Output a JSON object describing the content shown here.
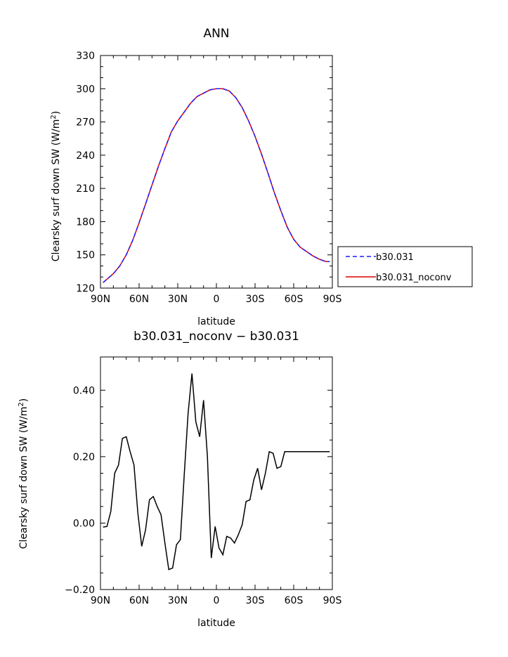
{
  "chart_data": [
    {
      "type": "line",
      "title": "ANN",
      "xlabel": "latitude",
      "ylabel": "Clearsky surf down SW (W/m",
      "ylabel_superscript": "2",
      "ylabel_suffix": ")",
      "xlim": [
        90,
        -90
      ],
      "ylim": [
        120,
        330
      ],
      "xticks": [
        90,
        60,
        30,
        0,
        -30,
        -60,
        -90
      ],
      "xtick_labels": [
        "90N",
        "60N",
        "30N",
        "0",
        "30S",
        "60S",
        "90S"
      ],
      "yticks": [
        120,
        150,
        180,
        210,
        240,
        270,
        300,
        330
      ],
      "ytick_labels": [
        "120",
        "150",
        "180",
        "210",
        "240",
        "270",
        "300",
        "330"
      ],
      "legend": {
        "placement": "right"
      },
      "series": [
        {
          "name": "b30.031",
          "color": "#1a1aff",
          "dash": "dashed",
          "x": [
            88,
            85,
            80,
            75,
            70,
            65,
            60,
            55,
            50,
            45,
            40,
            35,
            30,
            25,
            20,
            15,
            10,
            5,
            0,
            -5,
            -10,
            -15,
            -20,
            -25,
            -30,
            -35,
            -40,
            -45,
            -50,
            -55,
            -60,
            -65,
            -70,
            -75,
            -80,
            -85,
            -88
          ],
          "y": [
            125,
            128,
            133,
            140,
            150,
            163,
            179,
            196,
            213,
            230,
            246,
            261,
            271,
            279,
            287,
            293,
            296,
            299,
            300,
            300,
            298,
            292,
            283,
            271,
            257,
            241,
            224,
            206,
            190,
            175,
            164,
            157,
            153,
            149,
            146,
            144,
            144
          ]
        },
        {
          "name": "b30.031_noconv",
          "color": "#e00000",
          "dash": "solid",
          "x": [
            88,
            85,
            80,
            75,
            70,
            65,
            60,
            55,
            50,
            45,
            40,
            35,
            30,
            25,
            20,
            15,
            10,
            5,
            0,
            -5,
            -10,
            -15,
            -20,
            -25,
            -30,
            -35,
            -40,
            -45,
            -50,
            -55,
            -60,
            -65,
            -70,
            -75,
            -80,
            -85,
            -88
          ],
          "y": [
            125,
            128,
            133,
            140,
            150,
            163,
            179,
            196,
            213,
            230,
            246,
            261,
            271,
            279,
            287,
            293,
            296,
            299,
            300,
            300,
            298,
            292,
            283,
            271,
            257,
            241,
            224,
            206,
            190,
            175,
            164,
            157,
            153,
            149,
            146,
            144,
            144
          ]
        }
      ]
    },
    {
      "type": "line",
      "title": "b30.031_noconv − b30.031",
      "xlabel": "latitude",
      "ylabel": "Clearsky surf down SW (W/m",
      "ylabel_superscript": "2",
      "ylabel_suffix": ")",
      "xlim": [
        90,
        -90
      ],
      "ylim": [
        -0.2,
        0.5
      ],
      "xticks": [
        90,
        60,
        30,
        0,
        -30,
        -60,
        -90
      ],
      "xtick_labels": [
        "90N",
        "60N",
        "30N",
        "0",
        "30S",
        "60S",
        "90S"
      ],
      "yticks": [
        -0.2,
        0.0,
        0.2,
        0.4
      ],
      "ytick_labels": [
        "−0.20",
        "0.00",
        "0.20",
        "0.40"
      ],
      "series": [
        {
          "color": "#000000",
          "x": [
            88,
            85,
            82,
            79,
            76,
            73,
            70,
            67,
            64,
            61,
            58,
            55,
            52,
            49,
            46,
            43,
            40,
            37,
            34,
            31,
            28,
            25,
            22,
            19,
            16,
            13,
            10,
            7,
            4,
            1,
            -2,
            -5,
            -8,
            -11,
            -14,
            -17,
            -20,
            -23,
            -26,
            -29,
            -32,
            -35,
            -38,
            -41,
            -44,
            -47,
            -50,
            -53,
            -56,
            -59,
            -62,
            -65,
            -68,
            -71,
            -74,
            -77,
            -80,
            -83,
            -86,
            -88
          ],
          "y": [
            -0.012,
            -0.01,
            0.035,
            0.15,
            0.175,
            0.255,
            0.26,
            0.215,
            0.175,
            0.03,
            -0.07,
            -0.02,
            0.07,
            0.08,
            0.05,
            0.025,
            -0.06,
            -0.14,
            -0.135,
            -0.065,
            -0.05,
            0.145,
            0.33,
            0.45,
            0.305,
            0.26,
            0.37,
            0.2,
            -0.105,
            -0.01,
            -0.075,
            -0.095,
            -0.04,
            -0.045,
            -0.06,
            -0.035,
            -0.005,
            0.065,
            0.07,
            0.13,
            0.165,
            0.1,
            0.15,
            0.215,
            0.21,
            0.165,
            0.17,
            0.215,
            0.215,
            0.215,
            0.215,
            0.215,
            0.215,
            0.215,
            0.215,
            0.215,
            0.215,
            0.215,
            0.215,
            0.215
          ]
        }
      ]
    }
  ]
}
